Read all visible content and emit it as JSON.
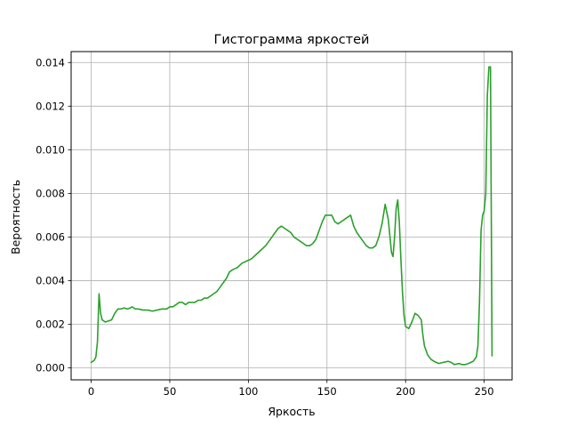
{
  "chart_data": {
    "type": "line",
    "title": "Гистограмма яркостей",
    "xlabel": "Яркость",
    "ylabel": "Вероятность",
    "xlim": [
      -12.75,
      267.75
    ],
    "ylim": [
      -0.00055,
      0.0145
    ],
    "xticks": [
      0,
      50,
      100,
      150,
      200,
      250
    ],
    "xtick_labels": [
      "0",
      "50",
      "100",
      "150",
      "200",
      "250"
    ],
    "yticks": [
      0,
      0.002,
      0.004,
      0.006,
      0.008,
      0.01,
      0.012,
      0.014
    ],
    "ytick_labels": [
      "0.000",
      "0.002",
      "0.004",
      "0.006",
      "0.008",
      "0.010",
      "0.012",
      "0.014"
    ],
    "grid": true,
    "legend": "none",
    "series": [
      {
        "color": "#2ca02c",
        "points": [
          [
            0,
            0.00025
          ],
          [
            2,
            0.00035
          ],
          [
            3,
            0.0005
          ],
          [
            4,
            0.0012
          ],
          [
            5,
            0.0034
          ],
          [
            6,
            0.0025
          ],
          [
            7,
            0.0022
          ],
          [
            9,
            0.0021
          ],
          [
            11,
            0.00215
          ],
          [
            13,
            0.0022
          ],
          [
            15,
            0.0025
          ],
          [
            17,
            0.0027
          ],
          [
            19,
            0.0027
          ],
          [
            21,
            0.00275
          ],
          [
            23,
            0.0027
          ],
          [
            25,
            0.00275
          ],
          [
            26,
            0.0028
          ],
          [
            28,
            0.0027
          ],
          [
            30,
            0.0027
          ],
          [
            33,
            0.00265
          ],
          [
            36,
            0.00265
          ],
          [
            39,
            0.0026
          ],
          [
            42,
            0.00265
          ],
          [
            45,
            0.0027
          ],
          [
            48,
            0.0027
          ],
          [
            50,
            0.0028
          ],
          [
            52,
            0.0028
          ],
          [
            54,
            0.0029
          ],
          [
            56,
            0.003
          ],
          [
            58,
            0.003
          ],
          [
            60,
            0.0029
          ],
          [
            62,
            0.003
          ],
          [
            64,
            0.003
          ],
          [
            66,
            0.003
          ],
          [
            68,
            0.0031
          ],
          [
            70,
            0.0031
          ],
          [
            72,
            0.0032
          ],
          [
            74,
            0.0032
          ],
          [
            76,
            0.0033
          ],
          [
            78,
            0.0034
          ],
          [
            80,
            0.0035
          ],
          [
            82,
            0.0037
          ],
          [
            84,
            0.0039
          ],
          [
            86,
            0.0041
          ],
          [
            88,
            0.0044
          ],
          [
            90,
            0.0045
          ],
          [
            93,
            0.0046
          ],
          [
            96,
            0.0048
          ],
          [
            99,
            0.0049
          ],
          [
            102,
            0.005
          ],
          [
            105,
            0.0052
          ],
          [
            108,
            0.0054
          ],
          [
            111,
            0.0056
          ],
          [
            113,
            0.0058
          ],
          [
            115,
            0.006
          ],
          [
            117,
            0.0062
          ],
          [
            119,
            0.0064
          ],
          [
            121,
            0.0065
          ],
          [
            123,
            0.0064
          ],
          [
            125,
            0.0063
          ],
          [
            127,
            0.0062
          ],
          [
            129,
            0.006
          ],
          [
            131,
            0.0059
          ],
          [
            133,
            0.0058
          ],
          [
            135,
            0.0057
          ],
          [
            137,
            0.0056
          ],
          [
            139,
            0.0056
          ],
          [
            141,
            0.0057
          ],
          [
            143,
            0.0059
          ],
          [
            145,
            0.0063
          ],
          [
            147,
            0.0067
          ],
          [
            149,
            0.007
          ],
          [
            151,
            0.007
          ],
          [
            153,
            0.007
          ],
          [
            155,
            0.0067
          ],
          [
            157,
            0.0066
          ],
          [
            159,
            0.0067
          ],
          [
            161,
            0.0068
          ],
          [
            163,
            0.0069
          ],
          [
            165,
            0.007
          ],
          [
            167,
            0.0065
          ],
          [
            169,
            0.0062
          ],
          [
            171,
            0.006
          ],
          [
            173,
            0.0058
          ],
          [
            175,
            0.0056
          ],
          [
            177,
            0.0055
          ],
          [
            179,
            0.0055
          ],
          [
            181,
            0.0056
          ],
          [
            183,
            0.006
          ],
          [
            185,
            0.0066
          ],
          [
            187,
            0.0075
          ],
          [
            189,
            0.0068
          ],
          [
            191,
            0.0053
          ],
          [
            192,
            0.0051
          ],
          [
            193,
            0.006
          ],
          [
            194,
            0.0073
          ],
          [
            195,
            0.0077
          ],
          [
            196,
            0.0067
          ],
          [
            197,
            0.005
          ],
          [
            198,
            0.0035
          ],
          [
            199,
            0.0024
          ],
          [
            200,
            0.0019
          ],
          [
            202,
            0.0018
          ],
          [
            204,
            0.0021
          ],
          [
            206,
            0.0025
          ],
          [
            208,
            0.0024
          ],
          [
            210,
            0.0022
          ],
          [
            211,
            0.0015
          ],
          [
            212,
            0.001
          ],
          [
            214,
            0.0006
          ],
          [
            216,
            0.0004
          ],
          [
            218,
            0.0003
          ],
          [
            221,
            0.0002
          ],
          [
            224,
            0.00025
          ],
          [
            227,
            0.0003
          ],
          [
            229,
            0.00025
          ],
          [
            231,
            0.00015
          ],
          [
            234,
            0.0002
          ],
          [
            236,
            0.00015
          ],
          [
            238,
            0.00015
          ],
          [
            240,
            0.0002
          ],
          [
            243,
            0.0003
          ],
          [
            245,
            0.0005
          ],
          [
            246,
            0.001
          ],
          [
            247,
            0.003
          ],
          [
            248,
            0.0063
          ],
          [
            249,
            0.007
          ],
          [
            250,
            0.0072
          ],
          [
            251,
            0.008
          ],
          [
            252,
            0.0125
          ],
          [
            253,
            0.0138
          ],
          [
            254,
            0.0138
          ],
          [
            255,
            0.00055
          ]
        ]
      }
    ]
  }
}
